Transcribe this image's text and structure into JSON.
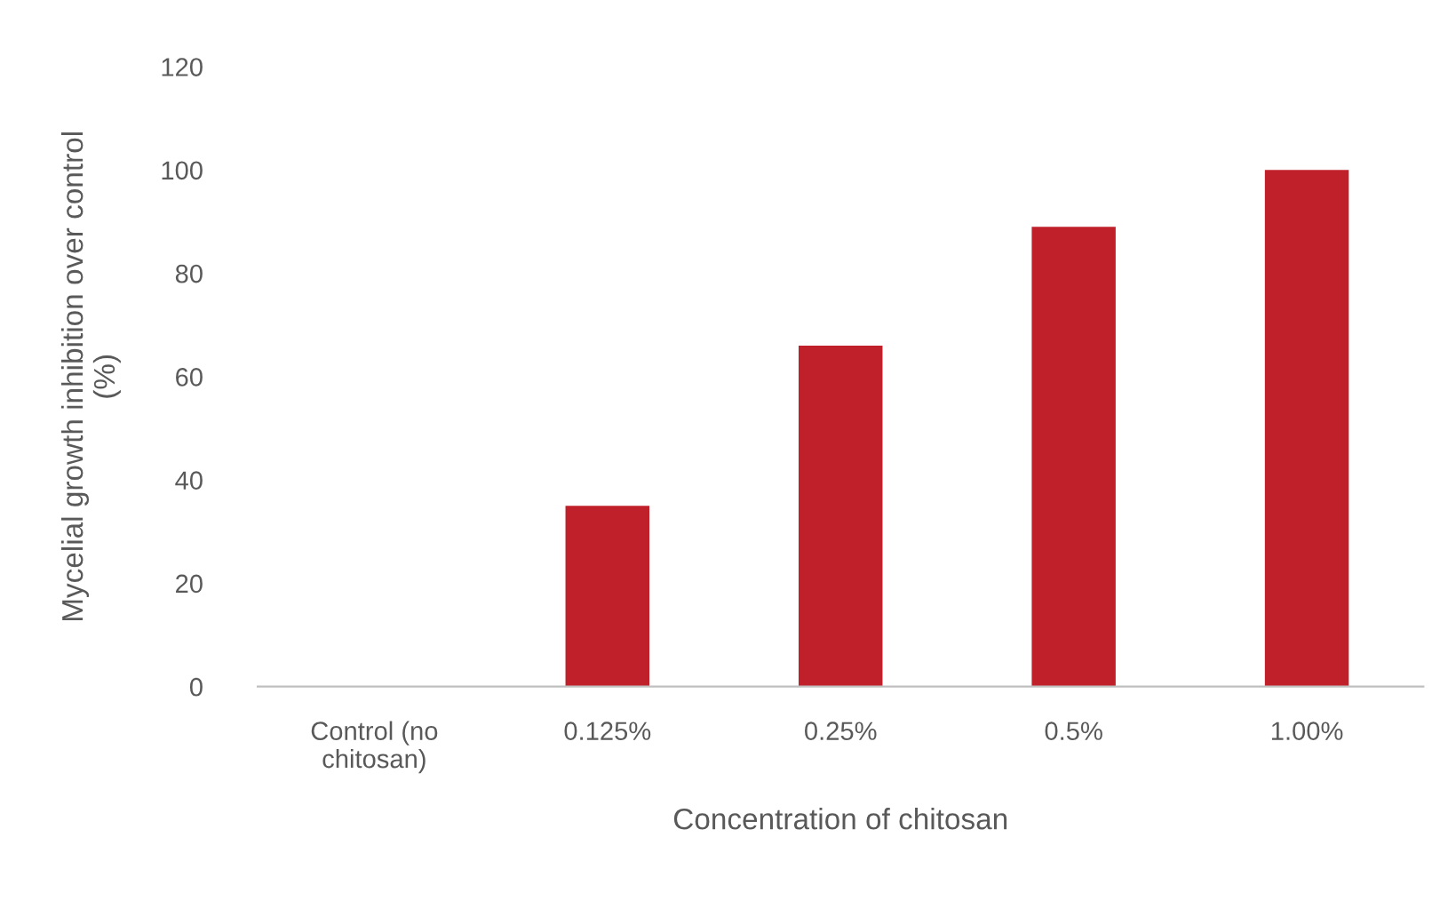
{
  "chart_data": {
    "type": "bar",
    "xlabel": "Concentration of chitosan",
    "ylabel": "Mycelial growth inhibition over control\n(%)",
    "categories": [
      "Control (no\nchitosan)",
      "0.125%",
      "0.25%",
      "0.5%",
      "1.00%"
    ],
    "series": [
      {
        "color": "#c0202a",
        "values": [
          0,
          35,
          66,
          89,
          100
        ]
      }
    ],
    "ylim": [
      0,
      120
    ],
    "yticks": [
      0,
      20,
      40,
      60,
      80,
      100,
      120
    ],
    "grid": false,
    "legend": false
  }
}
